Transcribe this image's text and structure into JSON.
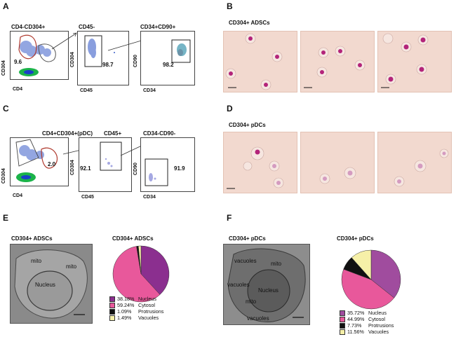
{
  "panels": {
    "A": {
      "letter": "A",
      "plots": [
        {
          "title": "CD4-CD304+",
          "ylabel": "CD304",
          "xlabel": "CD4",
          "values": [
            "9.6"
          ]
        },
        {
          "title": "CD45-",
          "ylabel": "CD304",
          "xlabel": "CD45",
          "values": [
            "98.7"
          ]
        },
        {
          "title": "CD34+CD90+",
          "ylabel": "CD90",
          "xlabel": "CD34",
          "values": [
            "98.2"
          ]
        }
      ]
    },
    "B": {
      "letter": "B",
      "subtitle": "CD304+ ADSCs"
    },
    "C": {
      "letter": "C",
      "plots": [
        {
          "title": "CD4+CD304+(pDC)",
          "ylabel": "CD304",
          "xlabel": "CD4",
          "values": [
            "2.0"
          ]
        },
        {
          "title": "CD45+",
          "ylabel": "CD304",
          "xlabel": "CD45",
          "values": [
            "92.1"
          ]
        },
        {
          "title": "CD34-CD90-",
          "ylabel": "CD90",
          "xlabel": "CD34",
          "values": [
            "91.9"
          ]
        }
      ]
    },
    "D": {
      "letter": "D",
      "subtitle": "CD304+ pDCs"
    },
    "E": {
      "letter": "E",
      "subtitle": "CD304+ ADSCs",
      "em_labels": [
        "mito",
        "mito",
        "Nucleus"
      ],
      "pie_title": "CD304+ ADSCs"
    },
    "F": {
      "letter": "F",
      "subtitle": "CD304+ pDCs",
      "em_labels": [
        "vacuoles",
        "mito",
        "vacuoles",
        "Nucleus",
        "mito",
        "vacuoles"
      ],
      "pie_title": "CD304+ pDCs"
    }
  },
  "chart_data": [
    {
      "type": "pie",
      "title": "CD304+ ADSCs",
      "categories": [
        "Nucleus",
        "Cytosol",
        "Protrusions",
        "Vacuoles"
      ],
      "values": [
        38.18,
        59.24,
        1.09,
        1.49
      ],
      "labels": [
        "38.18%",
        "59.24%",
        "1.09%",
        "1.49%"
      ],
      "colors": [
        "#8b2f8f",
        "#e8589b",
        "#111111",
        "#f6f0a8"
      ],
      "legend_placement": "bottom"
    },
    {
      "type": "pie",
      "title": "CD304+ pDCs",
      "categories": [
        "Nucleus",
        "Cytosol",
        "Protrusions",
        "Vacuoles"
      ],
      "values": [
        35.72,
        44.99,
        7.73,
        11.56
      ],
      "labels": [
        "35.72%",
        "44.99%",
        "7.73%",
        "11.56%"
      ],
      "colors": [
        "#a04c9e",
        "#e8589b",
        "#111111",
        "#f6f0a8"
      ],
      "legend_placement": "bottom"
    }
  ]
}
